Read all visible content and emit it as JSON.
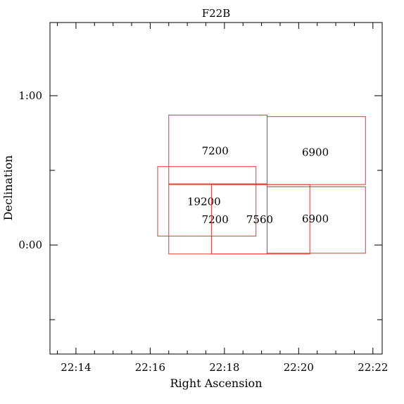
{
  "chart_data": {
    "type": "scatter",
    "title": "F22B",
    "xlabel": "Right Ascension",
    "ylabel": "Declination",
    "x_units": "RA (minutes after 22h)",
    "y_units": "Dec (degrees)",
    "xlim": [
      13.3,
      22.25
    ],
    "ylim": [
      -0.73,
      1.49
    ],
    "x_inverted": false,
    "grid": false,
    "legend": "none",
    "rect_color": "#e8362a",
    "x_ticks": [
      {
        "value": 14,
        "label": "22:14"
      },
      {
        "value": 16,
        "label": "22:16"
      },
      {
        "value": 18,
        "label": "22:18"
      },
      {
        "value": 20,
        "label": "22:20"
      },
      {
        "value": 22,
        "label": "22:22"
      }
    ],
    "x_minor_step": 0.5,
    "y_ticks": [
      {
        "value": 0,
        "label": "0:00"
      },
      {
        "value": 1,
        "label": "1:00"
      }
    ],
    "y_minor_step": 0.5,
    "fields": [
      {
        "label": "7200",
        "ra_min": 16.5,
        "ra_max": 19.15,
        "dec_min": 0.41,
        "dec_max": 0.87,
        "label_ra": 17.75,
        "label_dec": 0.63
      },
      {
        "label": "6900",
        "ra_min": 19.15,
        "ra_max": 21.8,
        "dec_min": 0.405,
        "dec_max": 0.86,
        "label_ra": 20.45,
        "label_dec": 0.62
      },
      {
        "label": "19200",
        "ra_min": 16.2,
        "ra_max": 18.85,
        "dec_min": 0.06,
        "dec_max": 0.525,
        "label_ra": 17.45,
        "label_dec": 0.29
      },
      {
        "label": "7200",
        "ra_min": 16.5,
        "ra_max": 19.15,
        "dec_min": -0.06,
        "dec_max": 0.405,
        "label_ra": 17.75,
        "label_dec": 0.17
      },
      {
        "label": "7560",
        "ra_min": 17.65,
        "ra_max": 20.3,
        "dec_min": -0.06,
        "dec_max": 0.405,
        "label_ra": 18.95,
        "label_dec": 0.17
      },
      {
        "label": "6900",
        "ra_min": 19.15,
        "ra_max": 21.8,
        "dec_min": -0.055,
        "dec_max": 0.39,
        "label_ra": 20.45,
        "label_dec": 0.175
      }
    ]
  }
}
